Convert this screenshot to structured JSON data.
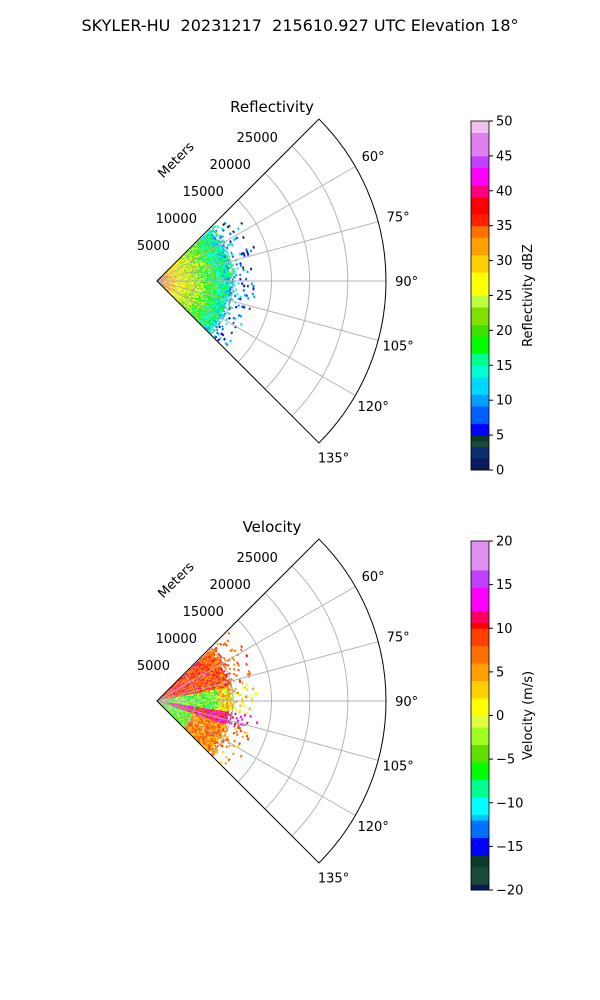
{
  "figure": {
    "suptitle": "SKYLER-HU  20231217  215610.927 UTC Elevation 18°"
  },
  "chart_data": [
    {
      "type": "heatmap",
      "subtype": "polar-sector",
      "title": "Reflectivity",
      "radial_label": "Meters",
      "r_ticks": [
        5000,
        10000,
        15000,
        20000,
        25000
      ],
      "r_tick_labels": [
        "5000",
        "10000",
        "15000",
        "20000",
        "25000"
      ],
      "theta_ticks": [
        60,
        75,
        90,
        105,
        120,
        135
      ],
      "theta_tick_labels": [
        "60°",
        "75°",
        "90°",
        "105°",
        "120°",
        "135°"
      ],
      "theta_range": [
        45,
        135
      ],
      "r_max": 30000,
      "data_extent_m": 10000,
      "colorbar": {
        "label": "Reflectivity dBZ",
        "range": [
          0,
          50
        ],
        "ticks": [
          0,
          5,
          10,
          15,
          20,
          25,
          30,
          35,
          40,
          45,
          50
        ],
        "tick_labels": [
          "0",
          "5",
          "10",
          "15",
          "20",
          "25",
          "30",
          "35",
          "40",
          "45",
          "50"
        ]
      },
      "grid": true
    },
    {
      "type": "heatmap",
      "subtype": "polar-sector",
      "title": "Velocity",
      "radial_label": "Meters",
      "r_ticks": [
        5000,
        10000,
        15000,
        20000,
        25000
      ],
      "r_tick_labels": [
        "5000",
        "10000",
        "15000",
        "20000",
        "25000"
      ],
      "theta_ticks": [
        60,
        75,
        90,
        105,
        120,
        135
      ],
      "theta_tick_labels": [
        "60°",
        "75°",
        "90°",
        "105°",
        "120°",
        "135°"
      ],
      "theta_range": [
        45,
        135
      ],
      "r_max": 30000,
      "data_extent_m": 10000,
      "colorbar": {
        "label": "Velocity (m/s)",
        "range": [
          -20,
          20
        ],
        "ticks": [
          -20,
          -15,
          -10,
          -5,
          0,
          5,
          10,
          15,
          20
        ],
        "tick_labels": [
          "−20",
          "−15",
          "−10",
          "−5",
          "0",
          "5",
          "10",
          "15",
          "20"
        ]
      },
      "grid": true
    }
  ]
}
